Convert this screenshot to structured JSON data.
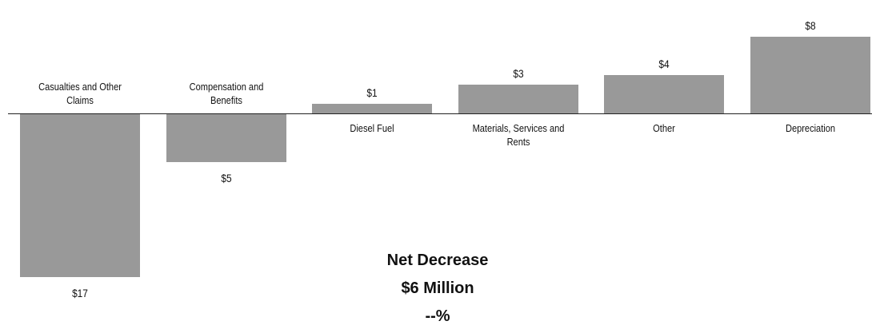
{
  "chart_data": {
    "type": "bar",
    "categories": [
      "Casualties and Other Claims",
      "Compensation and Benefits",
      "Diesel Fuel",
      "Materials, Services and Rents",
      "Other",
      "Depreciation"
    ],
    "values": [
      -17,
      -5,
      1,
      3,
      4,
      8
    ],
    "value_labels": [
      "$17",
      "$5",
      "$1",
      "$3",
      "$4",
      "$8"
    ],
    "color": "#999999",
    "annotations": [
      "Net Decrease",
      "$6 Million",
      "--%"
    ]
  }
}
